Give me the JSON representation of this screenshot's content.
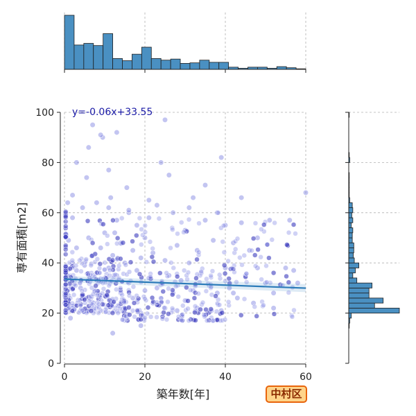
{
  "badge": "中村区",
  "chart_data": {
    "type": "scatter",
    "xlabel": "築年数[年]",
    "ylabel": "専有面積[m2]",
    "xlim": [
      0,
      60
    ],
    "ylim": [
      0,
      100
    ],
    "xticks": [
      0,
      20,
      40,
      60
    ],
    "yticks": [
      0,
      20,
      40,
      60,
      80,
      100
    ],
    "grid": true,
    "regression": {
      "slope": -0.06,
      "intercept": 33.55,
      "label": "y=-0.06x+33.55",
      "x_range": [
        0,
        60
      ]
    },
    "marginal_x": {
      "type": "histogram",
      "bin_edges": [
        0,
        2.4,
        4.8,
        7.2,
        9.6,
        12,
        14.4,
        16.8,
        19.2,
        21.6,
        24,
        26.4,
        28.8,
        31.2,
        33.6,
        36,
        38.4,
        40.8,
        43.2,
        45.6,
        48,
        50.4,
        52.8,
        55.2,
        57.6,
        60
      ],
      "counts": [
        100,
        45,
        48,
        44,
        66,
        20,
        16,
        28,
        41,
        20,
        17,
        19,
        11,
        12,
        17,
        13,
        13,
        4,
        2,
        4,
        4,
        2,
        5,
        3,
        1
      ]
    },
    "marginal_y": {
      "type": "histogram",
      "bin_edges": [
        14,
        16,
        18,
        20,
        22,
        24,
        26,
        28,
        30,
        32,
        34,
        36,
        38,
        40,
        42,
        44,
        46,
        48,
        50,
        52,
        54,
        56,
        58,
        60,
        62,
        64,
        66,
        68,
        70,
        72,
        74,
        76,
        78,
        80,
        82,
        84,
        86,
        88,
        90,
        92,
        94,
        96,
        98,
        100
      ],
      "counts": [
        1,
        2,
        5,
        100,
        51,
        68,
        40,
        40,
        46,
        16,
        8,
        13,
        20,
        11,
        9,
        10,
        10,
        7,
        7,
        8,
        5,
        8,
        6,
        8,
        7,
        2,
        1,
        1,
        1,
        1,
        1,
        0,
        0,
        2,
        1,
        0,
        0,
        0,
        0,
        0,
        0,
        0,
        1
      ]
    },
    "scatter_note": "dense point cloud; points rendered from summary distribution",
    "series": [
      {
        "points": [
          [
            0.5,
            22
          ],
          [
            0.5,
            35
          ],
          [
            0.8,
            64
          ],
          [
            1,
            49
          ],
          [
            1,
            27
          ],
          [
            1.5,
            18
          ],
          [
            2,
            40
          ],
          [
            2,
            58
          ],
          [
            2.5,
            23
          ],
          [
            3,
            37
          ],
          [
            3,
            80
          ],
          [
            3,
            46
          ],
          [
            4,
            30
          ],
          [
            4,
            21
          ],
          [
            4.5,
            62
          ],
          [
            5,
            39
          ],
          [
            5,
            26
          ],
          [
            5.5,
            74
          ],
          [
            6,
            33
          ],
          [
            6,
            50
          ],
          [
            6.5,
            22
          ],
          [
            7,
            95
          ],
          [
            7,
            43
          ],
          [
            7.5,
            29
          ],
          [
            8,
            28
          ],
          [
            8,
            64
          ],
          [
            8.5,
            36
          ],
          [
            9,
            21
          ],
          [
            9,
            46
          ],
          [
            9.5,
            90
          ],
          [
            10,
            52
          ],
          [
            10,
            33
          ],
          [
            10.5,
            27
          ],
          [
            11,
            62
          ],
          [
            11,
            38
          ],
          [
            11.5,
            66
          ],
          [
            12,
            43
          ],
          [
            12,
            24
          ],
          [
            12.5,
            52
          ],
          [
            13,
            35
          ],
          [
            13,
            57
          ],
          [
            14,
            28
          ],
          [
            14,
            48
          ],
          [
            15,
            22
          ],
          [
            15,
            40
          ],
          [
            15.5,
            70
          ],
          [
            16,
            32
          ],
          [
            16,
            60
          ],
          [
            17,
            26
          ],
          [
            17,
            45
          ],
          [
            18,
            37
          ],
          [
            18,
            55
          ],
          [
            19,
            20
          ],
          [
            19,
            42
          ],
          [
            20,
            50
          ],
          [
            20,
            29
          ],
          [
            21,
            34
          ],
          [
            21,
            58
          ],
          [
            22,
            24
          ],
          [
            22,
            44
          ],
          [
            23,
            63
          ],
          [
            23,
            30
          ],
          [
            24,
            26
          ],
          [
            24,
            80
          ],
          [
            25,
            97
          ],
          [
            25,
            41
          ],
          [
            25,
            22
          ],
          [
            26,
            35
          ],
          [
            27,
            60
          ],
          [
            27,
            28
          ],
          [
            28,
            47
          ],
          [
            28,
            21
          ],
          [
            29,
            33
          ],
          [
            30,
            53
          ],
          [
            30,
            25
          ],
          [
            31,
            40
          ],
          [
            32,
            29
          ],
          [
            32,
            66
          ],
          [
            33,
            22
          ],
          [
            33,
            45
          ],
          [
            34,
            36
          ],
          [
            35,
            57
          ],
          [
            35,
            19
          ],
          [
            36,
            31
          ],
          [
            37,
            49
          ],
          [
            38,
            28
          ],
          [
            38,
            60
          ],
          [
            39,
            21
          ],
          [
            39,
            82
          ],
          [
            40,
            38
          ],
          [
            40,
            55
          ],
          [
            41,
            30
          ],
          [
            42,
            48
          ],
          [
            43,
            26
          ],
          [
            44,
            56
          ],
          [
            45,
            35
          ],
          [
            46,
            45
          ],
          [
            47,
            24
          ],
          [
            48,
            50
          ],
          [
            50,
            32
          ],
          [
            51,
            57
          ],
          [
            52,
            28
          ],
          [
            55,
            38
          ],
          [
            56,
            57
          ],
          [
            58,
            32
          ],
          [
            60,
            68
          ],
          [
            57,
            37
          ],
          [
            2,
            67
          ],
          [
            6,
            86
          ],
          [
            9,
            91
          ],
          [
            11,
            77
          ],
          [
            13,
            92
          ],
          [
            16,
            61
          ],
          [
            21,
            65
          ],
          [
            26,
            75
          ],
          [
            31,
            62
          ],
          [
            35,
            71
          ],
          [
            44,
            66
          ],
          [
            48,
            38
          ],
          [
            52,
            22
          ],
          [
            12,
            12
          ],
          [
            19,
            15
          ],
          [
            37,
            17
          ],
          [
            42,
            28
          ]
        ]
      }
    ]
  }
}
